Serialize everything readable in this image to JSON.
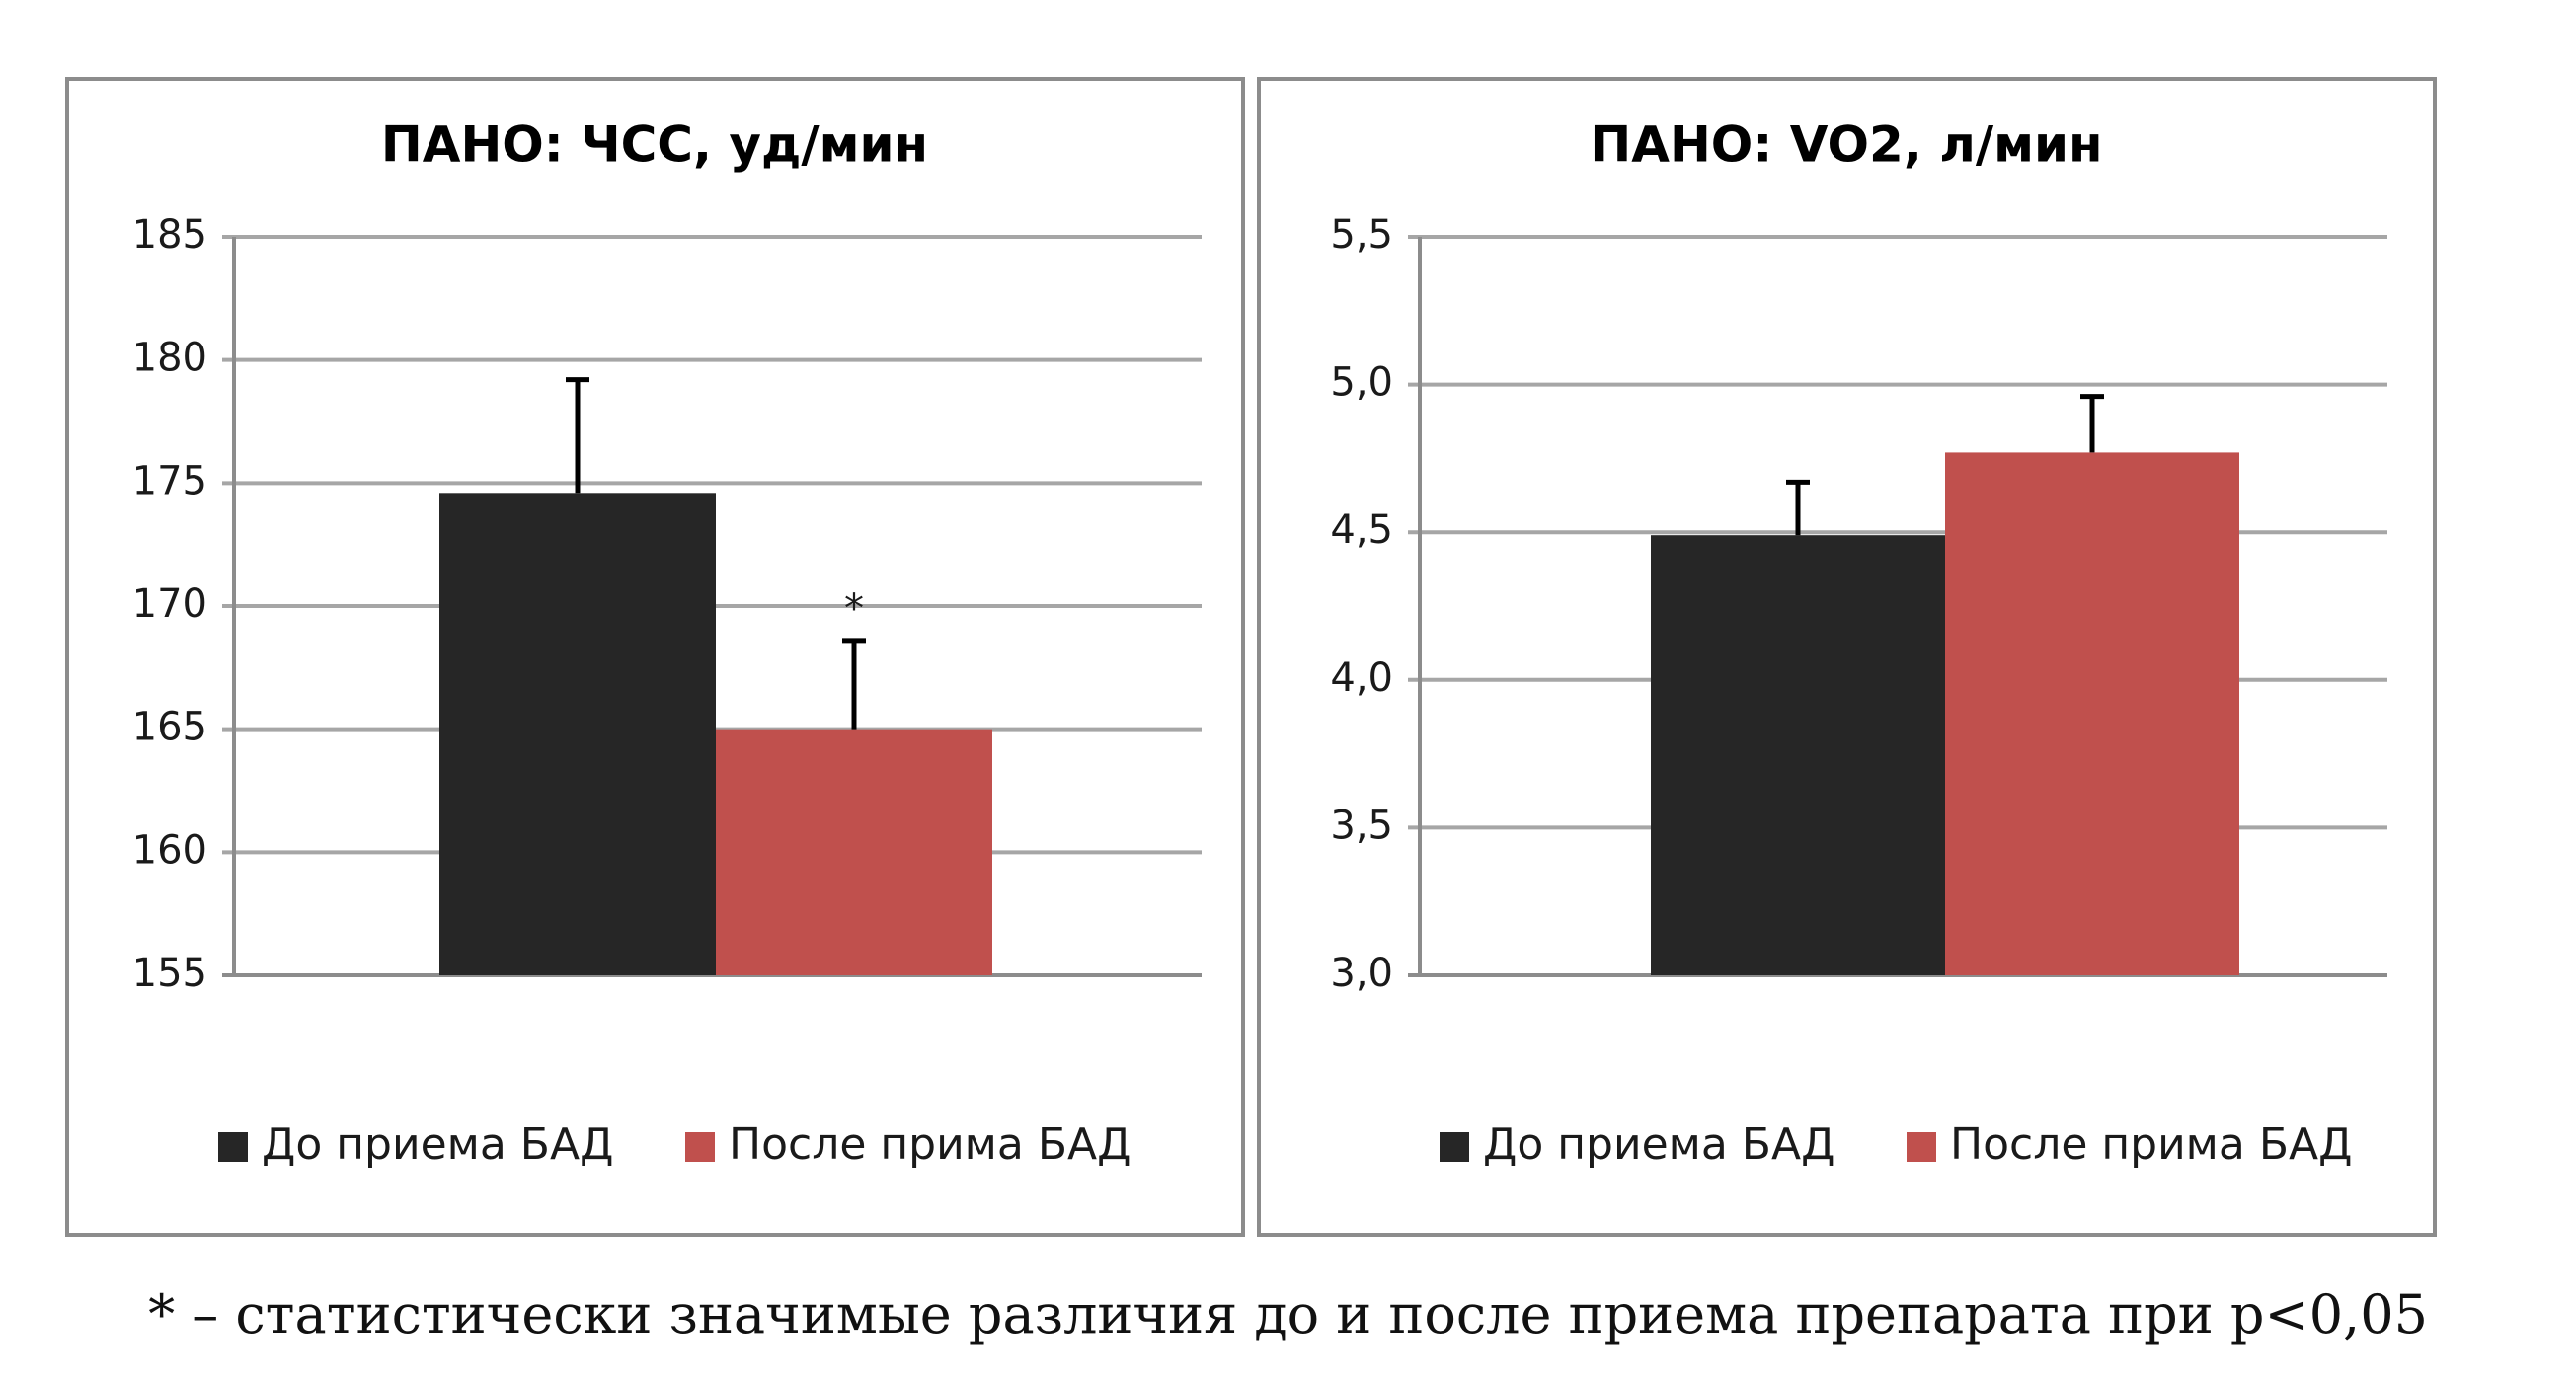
{
  "chart_data": [
    {
      "type": "bar",
      "title": "ПАНО: ЧСС, уд/мин",
      "xlabel": "",
      "ylabel": "",
      "ylim": [
        155,
        185
      ],
      "yticks": [
        "155",
        "160",
        "165",
        "170",
        "175",
        "180",
        "185"
      ],
      "ytick_values": [
        155,
        160,
        165,
        170,
        175,
        180,
        185
      ],
      "grid": true,
      "legend_position": "bottom",
      "series": [
        {
          "name": "До приема БАД",
          "value": 174.6,
          "error": 4.6,
          "color": "#262626",
          "annotation": ""
        },
        {
          "name": "После прима БАД",
          "value": 165.0,
          "error": 3.6,
          "color": "#c0504d",
          "annotation": "*"
        }
      ]
    },
    {
      "type": "bar",
      "title": "ПАНО: VO2, л/мин",
      "xlabel": "",
      "ylabel": "",
      "ylim": [
        3.0,
        5.5
      ],
      "yticks": [
        "3,0",
        "3,5",
        "4,0",
        "4,5",
        "5,0",
        "5,5"
      ],
      "ytick_values": [
        3.0,
        3.5,
        4.0,
        4.5,
        5.0,
        5.5
      ],
      "grid": true,
      "legend_position": "bottom",
      "series": [
        {
          "name": "До приема БАД",
          "value": 4.49,
          "error": 0.18,
          "color": "#262626",
          "annotation": ""
        },
        {
          "name": "После прима БАД",
          "value": 4.77,
          "error": 0.19,
          "color": "#c0504d",
          "annotation": ""
        }
      ]
    }
  ],
  "footnote": "* – статистически значимые различия до и после приема препарата при p<0,05"
}
